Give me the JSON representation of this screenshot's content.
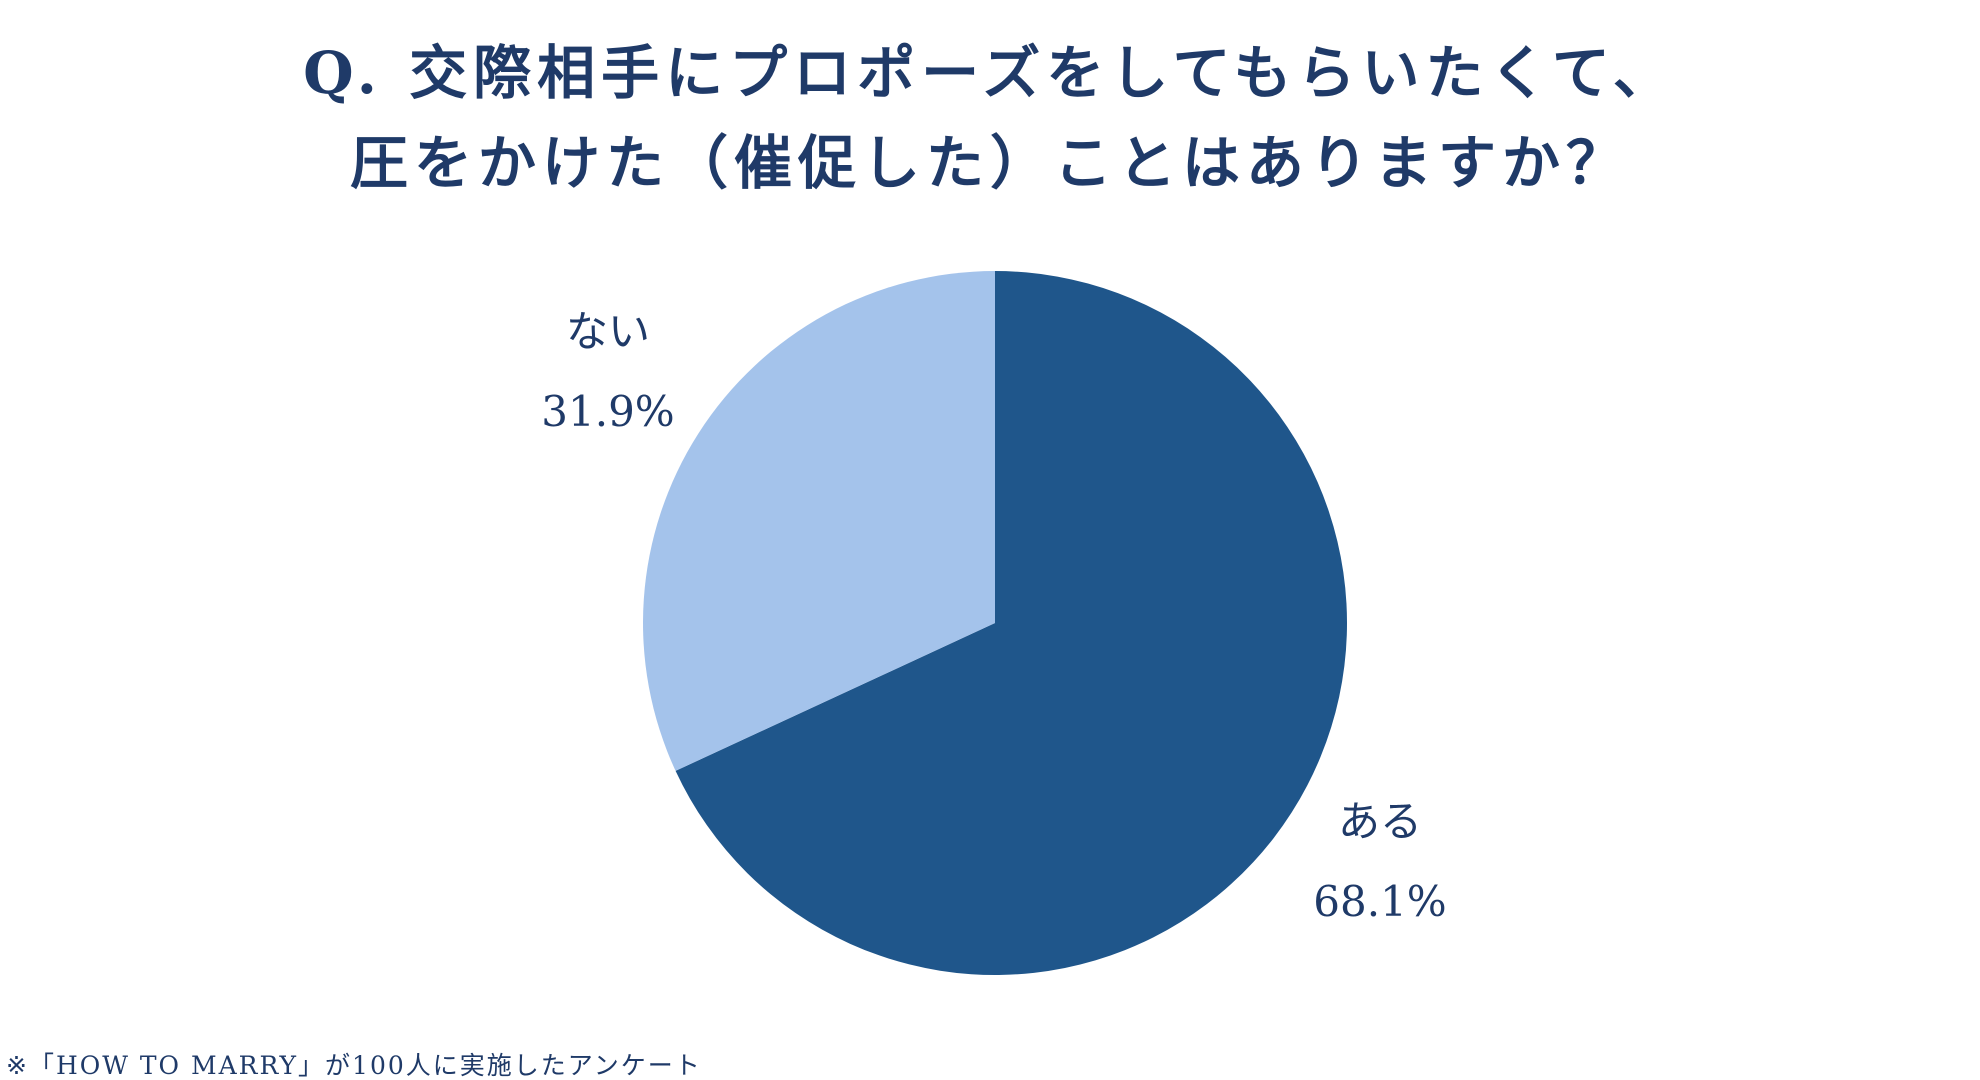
{
  "title": {
    "line1": "Q. 交際相手にプロポーズをしてもらいたくて、",
    "line2": "圧をかけた（催促した）ことはありますか？"
  },
  "chart_data": {
    "type": "pie",
    "slices": [
      {
        "label": "ある",
        "value": 68.1,
        "value_label": "68.1%",
        "color": "#1f568b"
      },
      {
        "label": "ない",
        "value": 31.9,
        "value_label": "31.9%",
        "color": "#a4c3eb"
      }
    ]
  },
  "footnote": "※「HOW TO MARRY」が100人に実施したアンケート"
}
